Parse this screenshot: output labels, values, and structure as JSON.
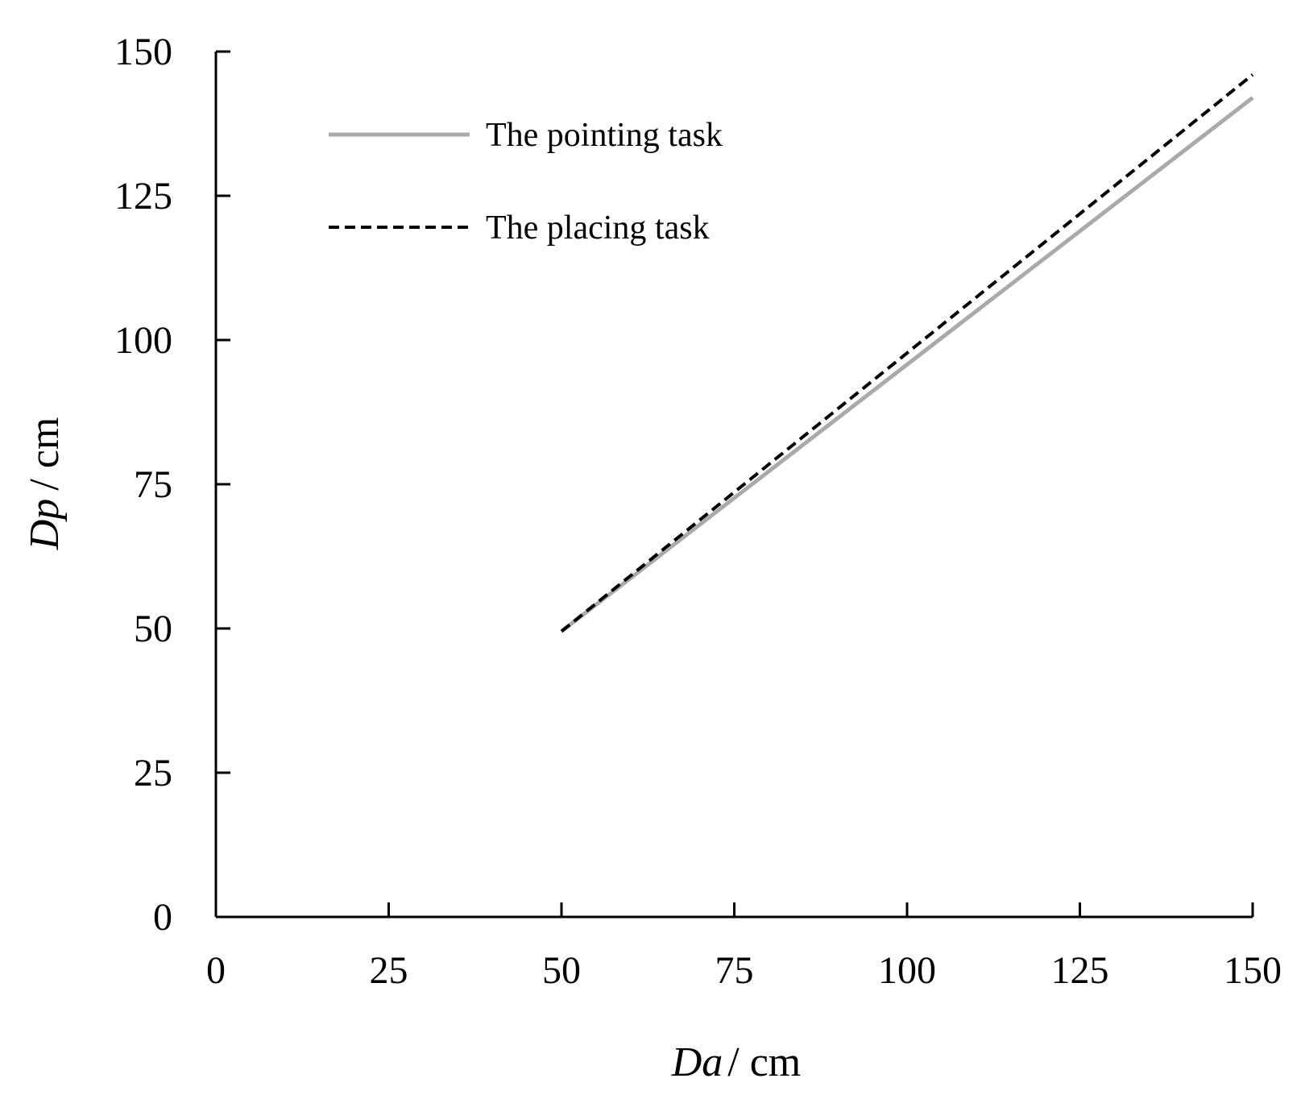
{
  "chart_data": {
    "type": "line",
    "title": "",
    "xlabel": {
      "var": "Da",
      "unit": "/ cm"
    },
    "ylabel": {
      "var": "Dp",
      "unit": "/ cm"
    },
    "xlim": [
      0,
      150
    ],
    "ylim": [
      0,
      150
    ],
    "xticks": [
      "0",
      "25",
      "50",
      "75",
      "100",
      "125",
      "150"
    ],
    "yticks": [
      "0",
      "25",
      "50",
      "75",
      "100",
      "125",
      "150"
    ],
    "grid": false,
    "legend": "top-left",
    "series": [
      {
        "name": "The pointing task",
        "x": [
          50,
          150
        ],
        "y": [
          49.5,
          142
        ],
        "color": "#aaaaaa",
        "style": "solid"
      },
      {
        "name": "The placing task",
        "x": [
          50,
          150
        ],
        "y": [
          49.5,
          146
        ],
        "color": "#000000",
        "style": "dashed"
      }
    ]
  }
}
